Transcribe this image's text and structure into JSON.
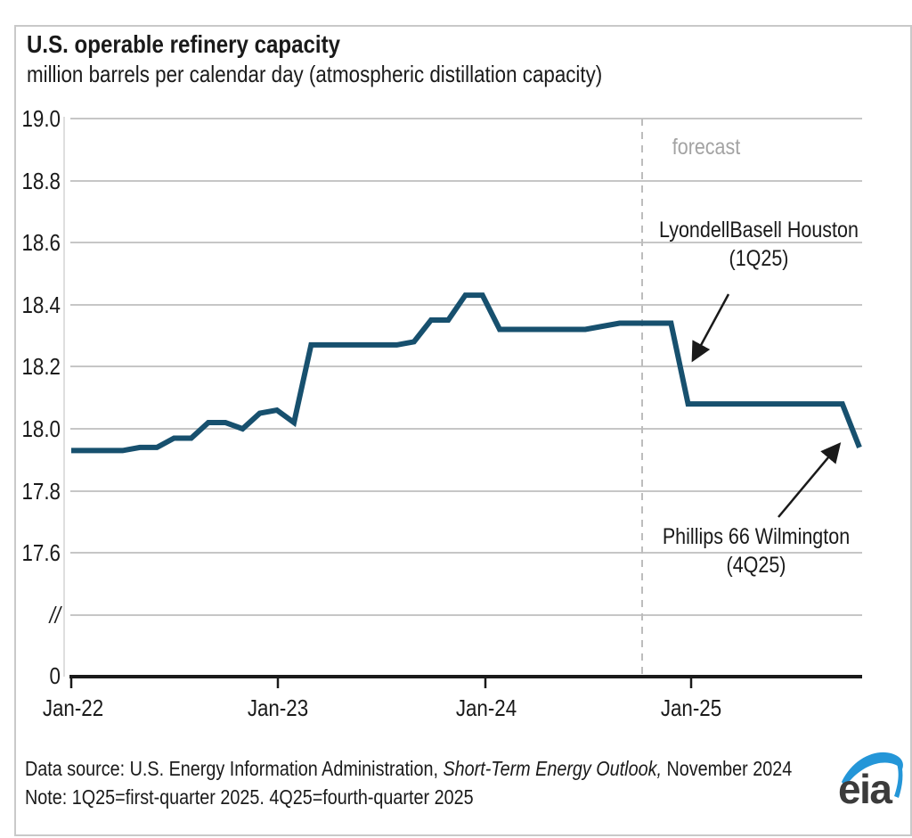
{
  "header": {
    "title": "U.S. operable refinery capacity",
    "subtitle": "million barrels per calendar day (atmospheric distillation capacity)"
  },
  "chart_data": {
    "type": "line",
    "title": "U.S. operable refinery capacity",
    "units_label": "million barrels per calendar day (atmospheric distillation capacity)",
    "frequency": "monthly",
    "x_start": "Jan-2022",
    "x_end": "Nov-2025",
    "x_tick_labels": [
      "Jan-22",
      "Jan-23",
      "Jan-24",
      "Jan-25"
    ],
    "y_tick_labels": [
      "19.0",
      "18.8",
      "18.6",
      "18.4",
      "18.2",
      "18.0",
      "17.8",
      "17.6",
      "//",
      "0"
    ],
    "y_axis_break": true,
    "ylim_shown": [
      17.6,
      19.0
    ],
    "grid": "horizontal",
    "forecast_label": "forecast",
    "forecast_start": "Nov-2024",
    "series": [
      {
        "name": "U.S. operable refinery capacity",
        "color": "#17506e",
        "values": [
          17.93,
          17.93,
          17.93,
          17.93,
          17.94,
          17.94,
          17.97,
          17.97,
          18.02,
          18.02,
          18.0,
          18.05,
          18.06,
          18.02,
          18.27,
          18.27,
          18.27,
          18.27,
          18.27,
          18.27,
          18.28,
          18.35,
          18.35,
          18.43,
          18.43,
          18.32,
          18.32,
          18.32,
          18.32,
          18.32,
          18.32,
          18.33,
          18.34,
          18.34,
          18.34,
          18.34,
          18.08,
          18.08,
          18.08,
          18.08,
          18.08,
          18.08,
          18.08,
          18.08,
          18.08,
          18.08,
          17.94
        ]
      }
    ],
    "annotations": [
      {
        "line1": "LyondellBasell Houston",
        "line2": "(1Q25)",
        "points_to_value": 18.08,
        "event": "capacity drop 1Q 2025"
      },
      {
        "line1": "Phillips 66 Wilmington",
        "line2": "(4Q25)",
        "points_to_value": 17.94,
        "event": "capacity drop 4Q 2025"
      }
    ]
  },
  "footer": {
    "source_prefix": "Data source: U.S. Energy Information Administration, ",
    "source_italic": "Short-Term Energy Outlook,",
    "source_suffix": " November 2024",
    "note": "Note: 1Q25=first-quarter 2025. 4Q25=fourth-quarter 2025",
    "logo_text": "eia"
  },
  "colors": {
    "line": "#17506e",
    "gridline": "#c6c6c6",
    "forecast_dash": "#bdbdbd",
    "forecast_text": "#a3a3a3",
    "axis": "#1a1a1a",
    "logo_swoosh": "#2496d8",
    "logo_text": "#3b3b3b",
    "border": "#c9c9c9"
  }
}
